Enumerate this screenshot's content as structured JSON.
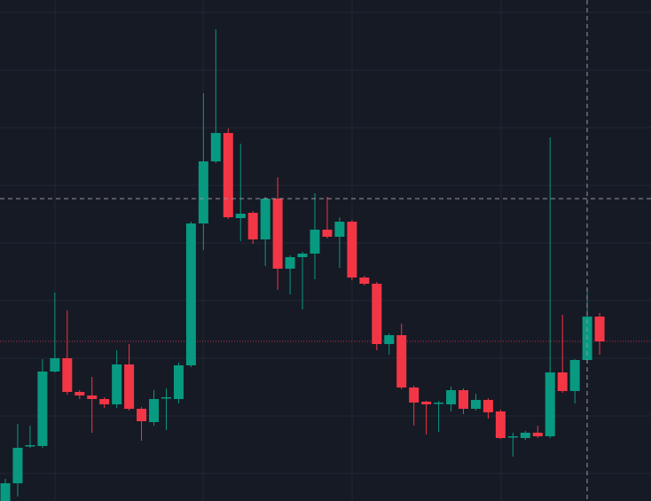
{
  "chart_data": {
    "type": "candlestick",
    "up_color": "#089981",
    "down_color": "#f23645",
    "ylim": [
      0,
      565
    ],
    "open": [
      0,
      20,
      62,
      62,
      146,
      161,
      123,
      119,
      115,
      109,
      154,
      104,
      89,
      116,
      115,
      153,
      313,
      383,
      415,
      319,
      325,
      295,
      341,
      262,
      275,
      279,
      306,
      298,
      315,
      252,
      245,
      177,
      187,
      128,
      112,
      110,
      109,
      125,
      104,
      114,
      101,
      72,
      71,
      77,
      73,
      145,
      124,
      159,
      208
    ],
    "high": [
      25,
      87,
      85,
      160,
      235,
      215,
      125,
      140,
      117,
      170,
      177,
      106,
      125,
      127,
      156,
      315,
      460,
      532,
      420,
      403,
      327,
      343,
      365,
      277,
      281,
      347,
      343,
      320,
      317,
      254,
      247,
      189,
      200,
      130,
      113,
      113,
      129,
      127,
      121,
      116,
      103,
      77,
      79,
      85,
      410,
      210,
      160,
      239,
      212
    ],
    "low": [
      0,
      5,
      60,
      60,
      145,
      120,
      115,
      77,
      105,
      105,
      102,
      68,
      85,
      80,
      110,
      151,
      283,
      381,
      318,
      293,
      290,
      265,
      238,
      233,
      216,
      250,
      296,
      263,
      249,
      243,
      170,
      165,
      126,
      85,
      75,
      78,
      101,
      98,
      102,
      93,
      70,
      50,
      69,
      71,
      71,
      122,
      110,
      155,
      165
    ],
    "close": [
      20,
      60,
      63,
      146,
      161,
      123,
      119,
      115,
      109,
      154,
      104,
      90,
      115,
      117,
      153,
      313,
      383,
      415,
      320,
      324,
      295,
      341,
      262,
      275,
      279,
      306,
      298,
      315,
      252,
      245,
      177,
      187,
      128,
      111,
      109,
      111,
      125,
      104,
      114,
      100,
      71,
      73,
      77,
      73,
      145,
      124,
      159,
      208,
      180
    ]
  }
}
